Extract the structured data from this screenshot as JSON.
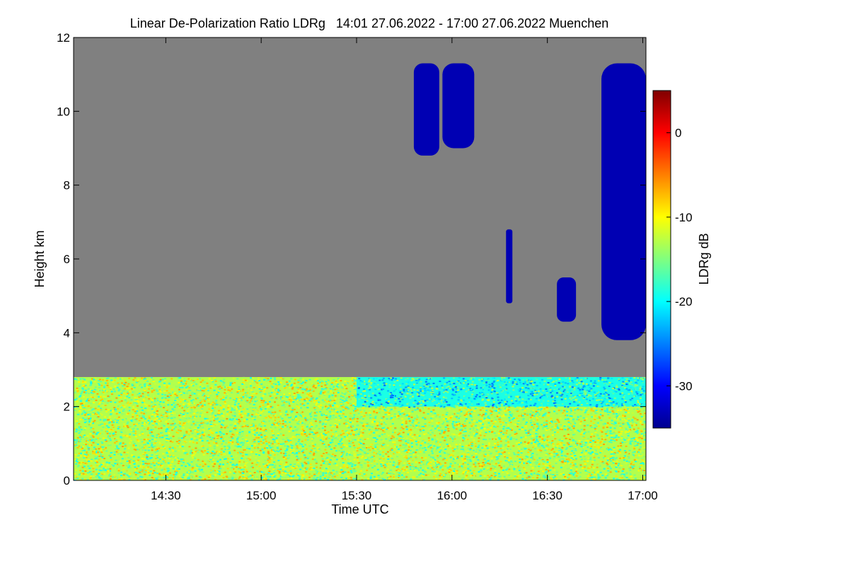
{
  "chart_data": {
    "type": "heatmap",
    "title": "Linear De-Polarization Ratio LDRg   14:01 27.06.2022 - 17:00 27.06.2022 Muenchen",
    "xlabel": "Time UTC",
    "ylabel": "Height km",
    "xlim": [
      "14:01",
      "17:01"
    ],
    "ylim": [
      0,
      12
    ],
    "x_ticks": [
      "14:30",
      "15:00",
      "15:30",
      "16:00",
      "16:30",
      "17:00"
    ],
    "y_ticks": [
      0,
      2,
      4,
      6,
      8,
      10,
      12
    ],
    "colorbar": {
      "label": "LDRg dB",
      "range": [
        -35,
        5
      ],
      "ticks": [
        0,
        -10,
        -20,
        -30
      ],
      "colormap": "jet"
    },
    "background_color": "#808080",
    "features": [
      {
        "region": "boundary layer",
        "time": [
          "14:01",
          "17:01"
        ],
        "height_km": [
          0.0,
          2.8
        ],
        "ldr_db": -13
      },
      {
        "region": "aerosol layer top",
        "time": [
          "15:30",
          "17:01"
        ],
        "height_km": [
          2.0,
          2.8
        ],
        "ldr_db": -19
      },
      {
        "region": "cirrus",
        "time": [
          "15:48",
          "15:56"
        ],
        "height_km": [
          8.8,
          11.3
        ],
        "ldr_db": -33
      },
      {
        "region": "cirrus",
        "time": [
          "15:57",
          "16:07"
        ],
        "height_km": [
          9.0,
          11.3
        ],
        "ldr_db": -33
      },
      {
        "region": "cloud",
        "time": [
          "16:17",
          "16:19"
        ],
        "height_km": [
          4.8,
          6.8
        ],
        "ldr_db": -33
      },
      {
        "region": "cloud",
        "time": [
          "16:33",
          "16:39"
        ],
        "height_km": [
          4.3,
          5.5
        ],
        "ldr_db": -33
      },
      {
        "region": "cirrus",
        "time": [
          "16:47",
          "17:01"
        ],
        "height_km": [
          3.8,
          11.3
        ],
        "ldr_db": -33
      }
    ]
  }
}
